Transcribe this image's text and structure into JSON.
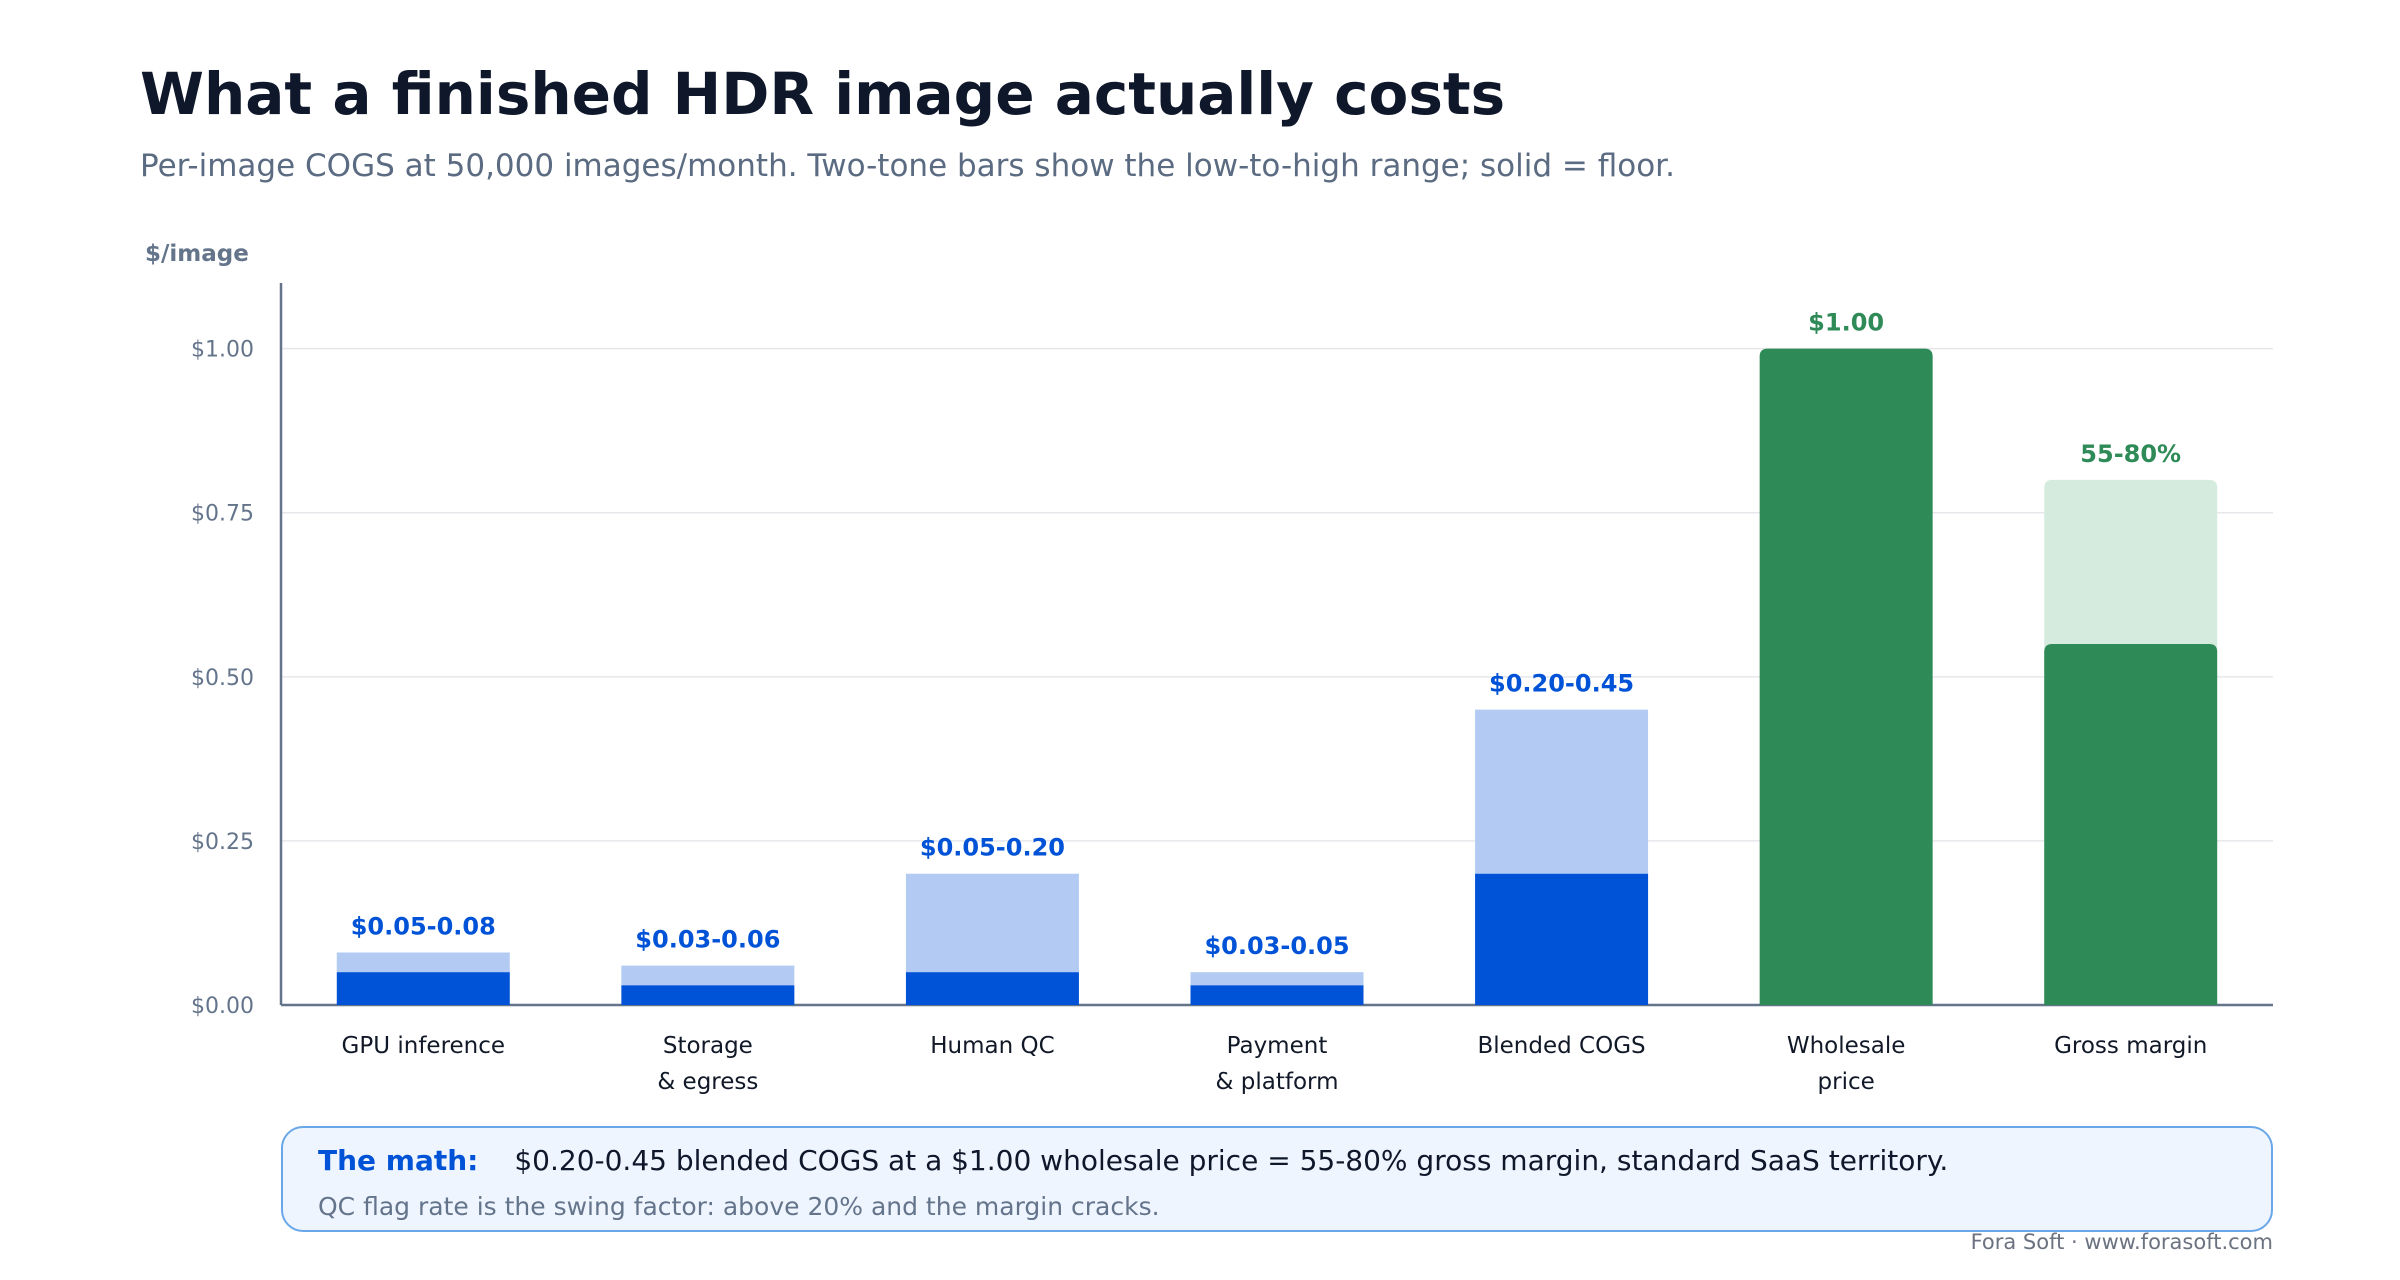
{
  "title": "What a finished HDR image actually costs",
  "subtitle": "Per-image COGS at 50,000 images/month. Two-tone bars show the low-to-high range; solid = floor.",
  "note": {
    "label": "The math:",
    "text": "$0.20-0.45 blended COGS at a $1.00 wholesale price = 55-80% gross margin, standard SaaS territory.",
    "subtext": "QC flag rate is the swing factor: above 20% and the margin cracks."
  },
  "footer": "Fora Soft · www.forasoft.com",
  "colors": {
    "cost_floor": "#0052d6",
    "cost_range": "#b3cbf3",
    "price": "#2e8b57",
    "margin_range": "#d5ebde",
    "axis": "#64748b",
    "grid": "#e5e7eb"
  },
  "chart_data": {
    "type": "bar",
    "ylabel": "$/image",
    "ylim": [
      0,
      1.1
    ],
    "yticks": [
      {
        "value": 0,
        "label": "$0.00"
      },
      {
        "value": 0.25,
        "label": "$0.25"
      },
      {
        "value": 0.5,
        "label": "$0.50"
      },
      {
        "value": 0.75,
        "label": "$0.75"
      },
      {
        "value": 1.0,
        "label": "$1.00"
      }
    ],
    "grid": true,
    "bars": [
      {
        "category": [
          "GPU inference"
        ],
        "low": 0.05,
        "high": 0.08,
        "label": "$0.05-0.08",
        "kind": "cost"
      },
      {
        "category": [
          "Storage",
          "& egress"
        ],
        "low": 0.03,
        "high": 0.06,
        "label": "$0.03-0.06",
        "kind": "cost"
      },
      {
        "category": [
          "Human QC"
        ],
        "low": 0.05,
        "high": 0.2,
        "label": "$0.05-0.20",
        "kind": "cost"
      },
      {
        "category": [
          "Payment",
          "& platform"
        ],
        "low": 0.03,
        "high": 0.05,
        "label": "$0.03-0.05",
        "kind": "cost"
      },
      {
        "category": [
          "Blended COGS"
        ],
        "low": 0.2,
        "high": 0.45,
        "label": "$0.20-0.45",
        "kind": "cost"
      },
      {
        "category": [
          "Wholesale",
          "price"
        ],
        "low": 1.0,
        "high": 1.0,
        "label": "$1.00",
        "kind": "price"
      },
      {
        "category": [
          "Gross margin"
        ],
        "low": 0.55,
        "high": 0.8,
        "label": "55-80%",
        "kind": "margin"
      }
    ]
  }
}
